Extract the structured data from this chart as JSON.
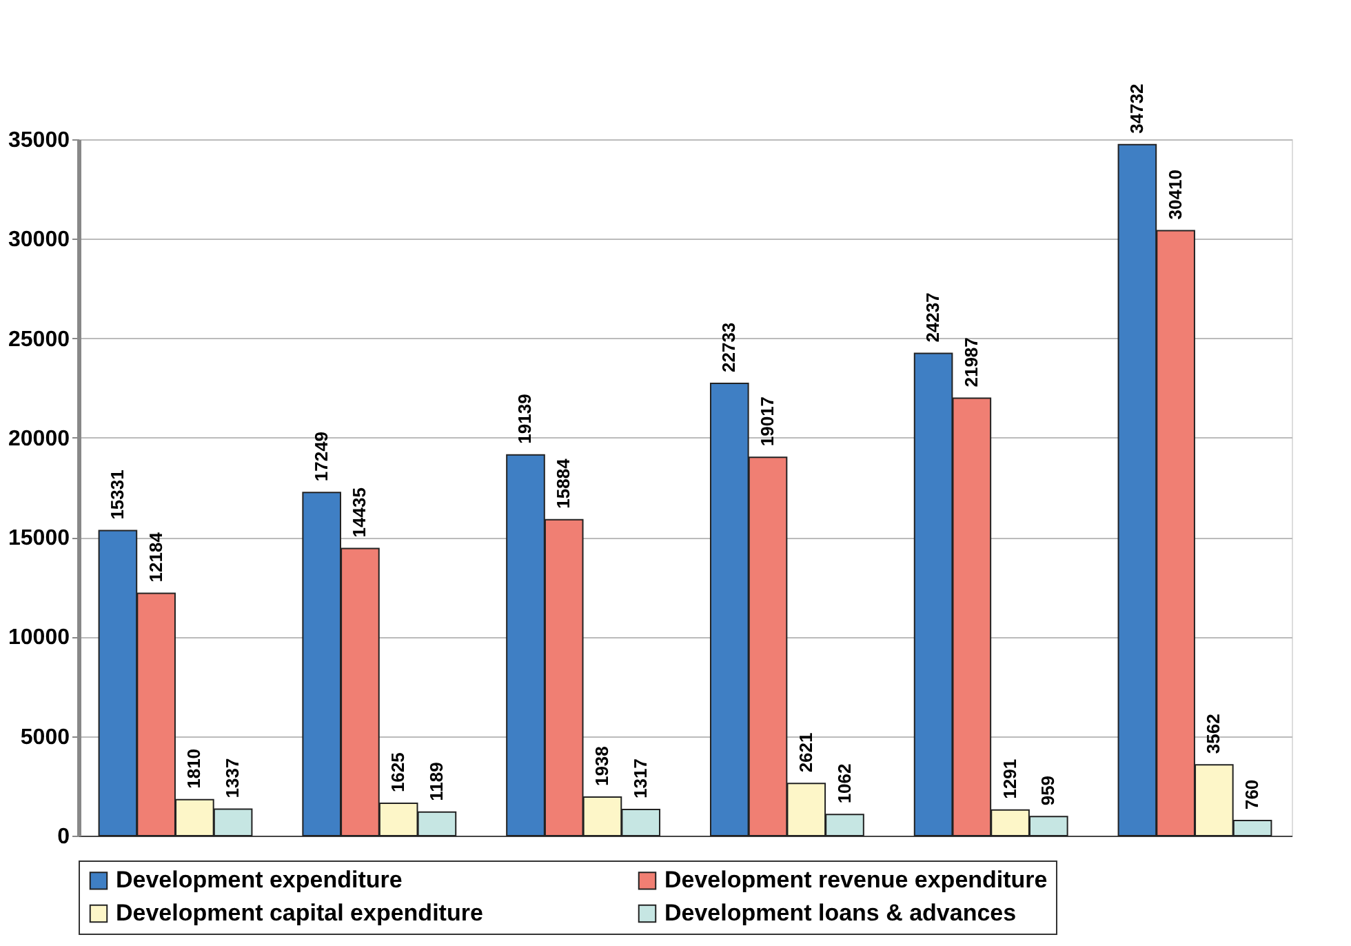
{
  "chart_data": {
    "type": "bar",
    "categories": [
      null,
      null,
      null,
      null,
      null,
      null
    ],
    "series": [
      {
        "name": "Development expenditure",
        "color": "#3f7fc4",
        "values": [
          15331,
          17249,
          19139,
          22733,
          24237,
          34732
        ]
      },
      {
        "name": "Development revenue expenditure",
        "color": "#f07f73",
        "values": [
          12184,
          14435,
          15884,
          19017,
          21987,
          30410
        ]
      },
      {
        "name": "Development capital expenditure",
        "color": "#fdf6c8",
        "values": [
          1810,
          1625,
          1938,
          2621,
          1291,
          3562
        ]
      },
      {
        "name": "Development loans & advances",
        "color": "#c6e6e3",
        "values": [
          1337,
          1189,
          1317,
          1062,
          959,
          760
        ]
      }
    ],
    "ylim": [
      0,
      35000
    ],
    "yticks": [
      0,
      5000,
      10000,
      15000,
      20000,
      25000,
      30000,
      35000
    ],
    "grid": "y",
    "legend": "bottom",
    "data_labels": true,
    "tick_labels": "y"
  }
}
